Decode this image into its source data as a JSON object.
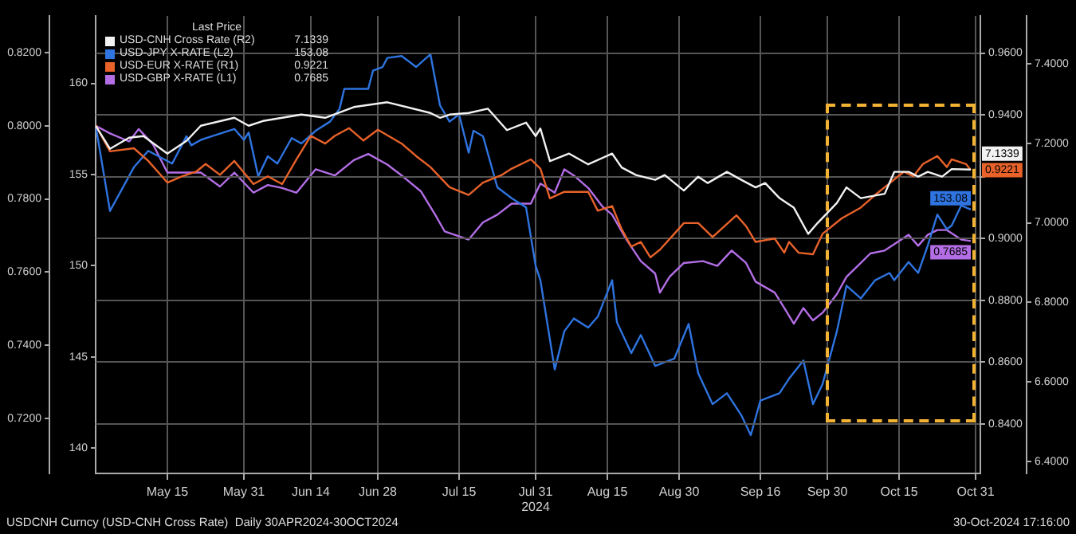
{
  "chart_data": [
    {
      "type": "line",
      "legend_title": "Last Price",
      "legend": "top left",
      "grid": "x",
      "marker": "none",
      "line_style": "solid",
      "xlim": [
        "2024-04-30",
        "2024-11-01"
      ],
      "xticks": [
        {
          "value": "2024-05-15",
          "label": "May 15"
        },
        {
          "value": "2024-05-31",
          "label": "May 31"
        },
        {
          "value": "2024-06-14",
          "label": "Jun 14"
        },
        {
          "value": "2024-06-28",
          "label": "Jun 28"
        },
        {
          "value": "2024-07-15",
          "label": "Jul 15"
        },
        {
          "value": "2024-07-31",
          "label": "Jul 31\n2024"
        },
        {
          "value": "2024-08-15",
          "label": "Aug 15"
        },
        {
          "value": "2024-08-30",
          "label": "Aug 30"
        },
        {
          "value": "2024-09-16",
          "label": "Sep 16"
        },
        {
          "value": "2024-09-30",
          "label": "Sep 30"
        },
        {
          "value": "2024-10-15",
          "label": "Oct 15"
        },
        {
          "value": "2024-10-31",
          "label": "Oct 31"
        }
      ],
      "ylim": [
        0.705,
        0.83
      ],
      "yticks": [
        {
          "value": 0.72,
          "label": "0.7200"
        },
        {
          "value": 0.74,
          "label": "0.7400"
        },
        {
          "value": 0.76,
          "label": "0.7600"
        },
        {
          "value": 0.78,
          "label": "0.7800"
        },
        {
          "value": 0.8,
          "label": "0.8000"
        },
        {
          "value": 0.82,
          "label": "0.8200"
        }
      ],
      "y2lim": [
        138.6,
        163.7
      ],
      "y2ticks": [
        140,
        145,
        150,
        155,
        160
      ],
      "annotations": [
        "USDCNH Curncy (USD-CNH Cross Rate)  Daily 30APR2024-30OCT2024",
        "30-Oct-2024 17:16:00"
      ],
      "series": [
        {
          "name": "USD-JPY X-RATE (L2)",
          "color": "#2f74e0",
          "axis": "y2",
          "x": [
            "2024-04-30",
            "2024-05-03",
            "2024-05-08",
            "2024-05-11",
            "2024-05-16",
            "2024-05-19",
            "2024-05-20",
            "2024-05-22",
            "2024-05-29",
            "2024-05-31",
            "2024-06-01",
            "2024-06-03",
            "2024-06-05",
            "2024-06-07",
            "2024-06-10",
            "2024-06-12",
            "2024-06-15",
            "2024-06-18",
            "2024-06-20",
            "2024-06-21",
            "2024-06-26",
            "2024-06-27",
            "2024-06-29",
            "2024-06-30",
            "2024-07-03",
            "2024-07-06",
            "2024-07-09",
            "2024-07-11",
            "2024-07-13",
            "2024-07-15",
            "2024-07-17",
            "2024-07-18",
            "2024-07-20",
            "2024-07-23",
            "2024-07-26",
            "2024-07-29",
            "2024-07-31",
            "2024-08-01",
            "2024-08-04",
            "2024-08-06",
            "2024-08-08",
            "2024-08-11",
            "2024-08-13",
            "2024-08-16",
            "2024-08-17",
            "2024-08-20",
            "2024-08-22",
            "2024-08-25",
            "2024-08-29",
            "2024-09-01",
            "2024-09-03",
            "2024-09-06",
            "2024-09-09",
            "2024-09-12",
            "2024-09-14",
            "2024-09-16",
            "2024-09-20",
            "2024-09-22",
            "2024-09-25",
            "2024-09-27",
            "2024-09-29",
            "2024-10-02",
            "2024-10-04",
            "2024-10-07",
            "2024-10-10",
            "2024-10-13",
            "2024-10-14",
            "2024-10-17",
            "2024-10-19",
            "2024-10-21",
            "2024-10-23",
            "2024-10-25",
            "2024-10-26",
            "2024-10-28",
            "2024-10-30"
          ],
          "values": [
            157.7,
            153.0,
            155.4,
            156.3,
            155.6,
            157.1,
            156.6,
            156.9,
            157.5,
            156.9,
            157.3,
            154.9,
            156.0,
            155.6,
            157.0,
            156.7,
            157.4,
            157.9,
            158.6,
            159.7,
            159.7,
            160.7,
            160.9,
            161.4,
            161.5,
            160.9,
            161.6,
            158.8,
            157.9,
            158.3,
            156.2,
            157.4,
            157.1,
            154.3,
            153.7,
            153.2,
            150.0,
            149.2,
            144.3,
            146.4,
            147.1,
            146.6,
            147.2,
            149.2,
            146.9,
            145.2,
            146.2,
            144.5,
            144.9,
            146.8,
            144.1,
            142.4,
            143.0,
            141.8,
            140.7,
            142.6,
            143.0,
            143.8,
            144.8,
            142.4,
            143.5,
            146.4,
            148.9,
            148.2,
            149.2,
            149.6,
            149.2,
            150.2,
            149.6,
            151.1,
            152.8,
            152.0,
            152.2,
            153.3,
            153.08
          ],
          "value_labels": [
            null,
            null,
            null,
            null,
            null,
            null,
            null,
            null,
            null,
            null,
            null,
            null,
            null,
            null,
            null,
            null,
            null,
            null,
            null,
            null,
            null,
            null,
            null,
            null,
            null,
            null,
            null,
            null,
            null,
            null,
            null,
            null,
            null,
            null,
            null,
            null,
            null,
            null,
            null,
            null,
            null,
            null,
            null,
            null,
            null,
            null,
            null,
            null,
            null,
            null,
            null,
            null,
            null,
            null,
            null,
            null,
            null,
            null,
            null,
            null,
            null,
            null,
            null,
            null,
            null,
            null,
            null,
            null,
            null,
            null,
            null,
            null,
            null,
            null,
            "153.08"
          ]
        },
        {
          "name": "USD-GBP X-RATE (L1)",
          "color": "#b36ee6",
          "x": [
            "2024-04-30",
            "2024-05-03",
            "2024-05-07",
            "2024-05-09",
            "2024-05-12",
            "2024-05-15",
            "2024-05-19",
            "2024-05-22",
            "2024-05-26",
            "2024-05-29",
            "2024-06-02",
            "2024-06-05",
            "2024-06-08",
            "2024-06-11",
            "2024-06-15",
            "2024-06-19",
            "2024-06-23",
            "2024-06-26",
            "2024-06-30",
            "2024-07-03",
            "2024-07-07",
            "2024-07-10",
            "2024-07-12",
            "2024-07-17",
            "2024-07-20",
            "2024-07-23",
            "2024-07-26",
            "2024-07-30",
            "2024-08-01",
            "2024-08-04",
            "2024-08-06",
            "2024-08-08",
            "2024-08-11",
            "2024-08-14",
            "2024-08-16",
            "2024-08-19",
            "2024-08-22",
            "2024-08-25",
            "2024-08-26",
            "2024-08-28",
            "2024-08-31",
            "2024-09-04",
            "2024-09-07",
            "2024-09-10",
            "2024-09-13",
            "2024-09-15",
            "2024-09-19",
            "2024-09-21",
            "2024-09-23",
            "2024-09-25",
            "2024-09-27",
            "2024-09-29",
            "2024-10-02",
            "2024-10-04",
            "2024-10-07",
            "2024-10-09",
            "2024-10-12",
            "2024-10-17",
            "2024-10-19",
            "2024-10-21",
            "2024-10-23",
            "2024-10-25",
            "2024-10-28",
            "2024-10-30"
          ],
          "values": [
            0.8,
            0.7979,
            0.7957,
            0.7991,
            0.7949,
            0.7872,
            0.7872,
            0.7872,
            0.7834,
            0.7872,
            0.7817,
            0.7838,
            0.783,
            0.7817,
            0.7881,
            0.7864,
            0.7906,
            0.7923,
            0.7894,
            0.7864,
            0.7821,
            0.7757,
            0.7711,
            0.7689,
            0.7736,
            0.7757,
            0.7787,
            0.7787,
            0.7842,
            0.7817,
            0.7881,
            0.7864,
            0.783,
            0.7779,
            0.7757,
            0.7689,
            0.763,
            0.7596,
            0.7544,
            0.7587,
            0.7625,
            0.763,
            0.7617,
            0.7659,
            0.7625,
            0.7574,
            0.7544,
            0.7502,
            0.7459,
            0.7502,
            0.7468,
            0.7489,
            0.754,
            0.7587,
            0.7625,
            0.7651,
            0.7659,
            0.7702,
            0.7672,
            0.7702,
            0.7715,
            0.7715,
            0.7689,
            0.7685
          ],
          "value_labels": [
            null,
            null,
            null,
            null,
            null,
            null,
            null,
            null,
            null,
            null,
            null,
            null,
            null,
            null,
            null,
            null,
            null,
            null,
            null,
            null,
            null,
            null,
            null,
            null,
            null,
            null,
            null,
            null,
            null,
            null,
            null,
            null,
            null,
            null,
            null,
            null,
            null,
            null,
            null,
            null,
            null,
            null,
            null,
            null,
            null,
            null,
            null,
            null,
            null,
            null,
            null,
            null,
            null,
            null,
            null,
            null,
            null,
            null,
            null,
            null,
            null,
            null,
            null,
            "0.7685"
          ]
        }
      ]
    },
    {
      "type": "line",
      "legend": "top left",
      "grid": "y",
      "marker": "none",
      "line_style": "solid",
      "tick_labels": "y",
      "xlim": [
        "2024-04-30",
        "2024-11-01"
      ],
      "ylim": [
        0.824,
        0.972
      ],
      "yticks": [
        {
          "value": 0.84,
          "label": "0.8400"
        },
        {
          "value": 0.86,
          "label": "0.8600"
        },
        {
          "value": 0.88,
          "label": "0.8800"
        },
        {
          "value": 0.9,
          "label": "0.9000"
        },
        {
          "value": 0.92,
          "label": null
        },
        {
          "value": 0.94,
          "label": "0.9400"
        },
        {
          "value": 0.96,
          "label": "0.9600"
        }
      ],
      "y2lim": [
        6.37,
        7.52
      ],
      "y2ticks": [
        {
          "value": 6.4,
          "label": "6.4000"
        },
        {
          "value": 6.6,
          "label": "6.6000"
        },
        {
          "value": 6.8,
          "label": "6.8000"
        },
        {
          "value": 7.0,
          "label": "7.0000"
        },
        {
          "value": 7.2,
          "label": "7.2000"
        },
        {
          "value": 7.4,
          "label": "7.4000"
        }
      ],
      "series": [
        {
          "name": "USD-CNH Cross Rate (R2)",
          "color": "#f2f2f2",
          "axis": "y2",
          "x": [
            "2024-04-30",
            "2024-05-03",
            "2024-05-07",
            "2024-05-10",
            "2024-05-15",
            "2024-05-19",
            "2024-05-22",
            "2024-05-29",
            "2024-06-01",
            "2024-06-04",
            "2024-06-12",
            "2024-06-17",
            "2024-06-23",
            "2024-06-30",
            "2024-07-09",
            "2024-07-11",
            "2024-07-13",
            "2024-07-17",
            "2024-07-21",
            "2024-07-25",
            "2024-07-29",
            "2024-07-31",
            "2024-08-01",
            "2024-08-03",
            "2024-08-07",
            "2024-08-11",
            "2024-08-16",
            "2024-08-18",
            "2024-08-21",
            "2024-08-25",
            "2024-08-27",
            "2024-08-31",
            "2024-09-03",
            "2024-09-05",
            "2024-09-09",
            "2024-09-12",
            "2024-09-15",
            "2024-09-17",
            "2024-09-20",
            "2024-09-23",
            "2024-09-26",
            "2024-09-28",
            "2024-10-02",
            "2024-10-04",
            "2024-10-07",
            "2024-10-12",
            "2024-10-14",
            "2024-10-17",
            "2024-10-19",
            "2024-10-21",
            "2024-10-24",
            "2024-10-26",
            "2024-10-30"
          ],
          "values": [
            7.244,
            7.186,
            7.214,
            7.218,
            7.174,
            7.206,
            7.244,
            7.264,
            7.244,
            7.256,
            7.272,
            7.264,
            7.291,
            7.303,
            7.276,
            7.264,
            7.272,
            7.276,
            7.287,
            7.233,
            7.252,
            7.218,
            7.237,
            7.155,
            7.174,
            7.147,
            7.174,
            7.139,
            7.12,
            7.108,
            7.12,
            7.081,
            7.116,
            7.1,
            7.128,
            7.108,
            7.089,
            7.1,
            7.062,
            7.038,
            6.972,
            7.0,
            7.05,
            7.089,
            7.062,
            7.073,
            7.128,
            7.128,
            7.116,
            7.128,
            7.116,
            7.135,
            7.1339
          ],
          "value_labels": [
            null,
            null,
            null,
            null,
            null,
            null,
            null,
            null,
            null,
            null,
            null,
            null,
            null,
            null,
            null,
            null,
            null,
            null,
            null,
            null,
            null,
            null,
            null,
            null,
            null,
            null,
            null,
            null,
            null,
            null,
            null,
            null,
            null,
            null,
            null,
            null,
            null,
            null,
            null,
            null,
            null,
            null,
            null,
            null,
            null,
            null,
            null,
            null,
            null,
            null,
            null,
            null,
            "7.1339"
          ]
        },
        {
          "name": "USD-EUR X-RATE (R1)",
          "color": "#e8622a",
          "x": [
            "2024-04-30",
            "2024-05-03",
            "2024-05-08",
            "2024-05-11",
            "2024-05-15",
            "2024-05-18",
            "2024-05-21",
            "2024-05-23",
            "2024-05-26",
            "2024-05-29",
            "2024-06-02",
            "2024-06-05",
            "2024-06-08",
            "2024-06-11",
            "2024-06-14",
            "2024-06-17",
            "2024-06-19",
            "2024-06-22",
            "2024-06-25",
            "2024-06-28",
            "2024-07-03",
            "2024-07-06",
            "2024-07-09",
            "2024-07-13",
            "2024-07-17",
            "2024-07-20",
            "2024-07-24",
            "2024-07-26",
            "2024-07-30",
            "2024-08-01",
            "2024-08-03",
            "2024-08-06",
            "2024-08-11",
            "2024-08-13",
            "2024-08-16",
            "2024-08-18",
            "2024-08-20",
            "2024-08-22",
            "2024-08-24",
            "2024-08-26",
            "2024-08-29",
            "2024-08-31",
            "2024-09-03",
            "2024-09-06",
            "2024-09-11",
            "2024-09-13",
            "2024-09-15",
            "2024-09-19",
            "2024-09-21",
            "2024-09-22",
            "2024-09-24",
            "2024-09-27",
            "2024-09-29",
            "2024-10-03",
            "2024-10-07",
            "2024-10-10",
            "2024-10-12",
            "2024-10-16",
            "2024-10-18",
            "2024-10-20",
            "2024-10-23",
            "2024-10-25",
            "2024-10-26",
            "2024-10-29",
            "2024-10-30"
          ],
          "values": [
            0.9367,
            0.9282,
            0.9292,
            0.9251,
            0.9181,
            0.9201,
            0.9216,
            0.9241,
            0.9206,
            0.9251,
            0.9176,
            0.9201,
            0.9176,
            0.9256,
            0.9332,
            0.9307,
            0.9332,
            0.9357,
            0.9317,
            0.9352,
            0.9307,
            0.9267,
            0.9231,
            0.9166,
            0.9141,
            0.9181,
            0.9206,
            0.9226,
            0.9256,
            0.9226,
            0.913,
            0.9151,
            0.9151,
            0.909,
            0.9105,
            0.903,
            0.8974,
            0.8989,
            0.8939,
            0.8964,
            0.9015,
            0.905,
            0.905,
            0.9005,
            0.9075,
            0.904,
            0.8989,
            0.9,
            0.8954,
            0.8989,
            0.8954,
            0.8949,
            0.9015,
            0.9065,
            0.91,
            0.9141,
            0.9166,
            0.9216,
            0.9201,
            0.9241,
            0.9267,
            0.9231,
            0.9256,
            0.9241,
            0.9221
          ],
          "value_labels": [
            null,
            null,
            null,
            null,
            null,
            null,
            null,
            null,
            null,
            null,
            null,
            null,
            null,
            null,
            null,
            null,
            null,
            null,
            null,
            null,
            null,
            null,
            null,
            null,
            null,
            null,
            null,
            null,
            null,
            null,
            null,
            null,
            null,
            null,
            null,
            null,
            null,
            null,
            null,
            null,
            null,
            null,
            null,
            null,
            null,
            null,
            null,
            null,
            null,
            null,
            null,
            null,
            null,
            null,
            null,
            null,
            null,
            null,
            null,
            null,
            null,
            null,
            null,
            null,
            "0.9221"
          ]
        }
      ]
    }
  ]
}
